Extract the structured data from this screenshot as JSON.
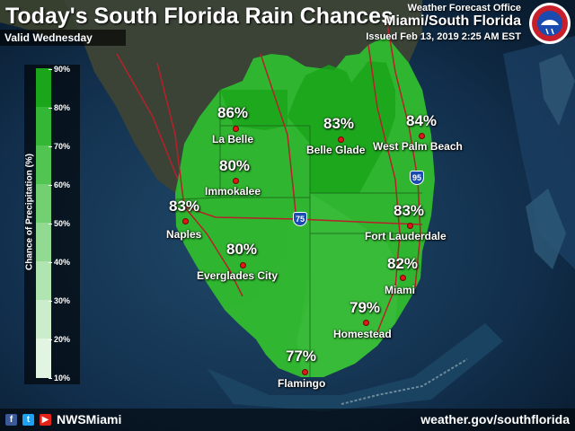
{
  "header": {
    "title": "Today's South Florida Rain Chances",
    "valid": "Valid Wednesday",
    "office_line1": "Weather Forecast Office",
    "office_line2": "Miami/South Florida",
    "issued": "Issued Feb 13, 2019 2:25 AM EST"
  },
  "legend": {
    "title": "Chance of Precipitation (%)",
    "ticks": [
      "90%",
      "80%",
      "70%",
      "60%",
      "50%",
      "40%",
      "30%",
      "20%",
      "10%"
    ],
    "bin_colors": [
      "#1aa51a",
      "#34b734",
      "#52c452",
      "#72d072",
      "#92da92",
      "#b0e4b0",
      "#ccedcc",
      "#e2f5e2"
    ]
  },
  "cities": [
    {
      "name": "La Belle",
      "pct": "86%"
    },
    {
      "name": "Belle Glade",
      "pct": "83%"
    },
    {
      "name": "West Palm Beach",
      "pct": "84%"
    },
    {
      "name": "Immokalee",
      "pct": "80%"
    },
    {
      "name": "Naples",
      "pct": "83%"
    },
    {
      "name": "Fort Lauderdale",
      "pct": "83%"
    },
    {
      "name": "Everglades City",
      "pct": "80%"
    },
    {
      "name": "Miami",
      "pct": "82%"
    },
    {
      "name": "Homestead",
      "pct": "79%"
    },
    {
      "name": "Flamingo",
      "pct": "77%"
    }
  ],
  "highways": {
    "i75": "75",
    "i95": "95"
  },
  "footer": {
    "handle": "NWSMiami",
    "website": "weather.gov/southflorida",
    "social_icons": [
      "facebook-icon",
      "twitter-icon",
      "youtube-icon"
    ]
  },
  "colors": {
    "rain_high": "#1aa51a",
    "rain_mid": "#2fb52f",
    "rain_low": "#3cbd3c",
    "ocean": "#0d2a48",
    "city_dot": "#e01818"
  }
}
